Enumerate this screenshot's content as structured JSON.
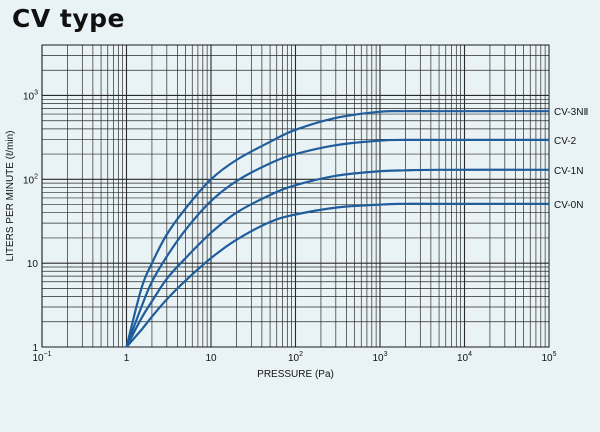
{
  "title": "CV type",
  "chart_data": {
    "type": "line",
    "title": "CV type",
    "xlabel": "PRESSURE (Pa)",
    "ylabel": "LITERS PER MINUTE (ℓ/min)",
    "xscale": "log",
    "yscale": "log",
    "xlim": [
      0.1,
      100000
    ],
    "ylim": [
      1,
      4000
    ],
    "grid": true,
    "x_ticks": [
      {
        "base": "10",
        "exp": "−1",
        "value": 0.1
      },
      {
        "base": "1",
        "exp": "",
        "value": 1
      },
      {
        "base": "10",
        "exp": "",
        "value": 10
      },
      {
        "base": "10",
        "exp": "2",
        "value": 100
      },
      {
        "base": "10",
        "exp": "3",
        "value": 1000
      },
      {
        "base": "10",
        "exp": "4",
        "value": 10000
      },
      {
        "base": "10",
        "exp": "5",
        "value": 100000
      }
    ],
    "y_ticks": [
      {
        "base": "1",
        "exp": "",
        "value": 1
      },
      {
        "base": "10",
        "exp": "",
        "value": 10
      },
      {
        "base": "10",
        "exp": "2",
        "value": 100
      },
      {
        "base": "10",
        "exp": "3",
        "value": 1000
      }
    ],
    "series": [
      {
        "name": "CV-3NⅡ",
        "color": "#1f5d9c",
        "x": [
          1,
          1.5,
          2,
          3,
          5,
          10,
          20,
          50,
          100,
          300,
          1000,
          2000,
          5000,
          100000
        ],
        "y": [
          1,
          5,
          10,
          22,
          45,
          100,
          170,
          280,
          390,
          540,
          640,
          650,
          650,
          650
        ]
      },
      {
        "name": "CV-2",
        "color": "#1f5d9c",
        "x": [
          1,
          1.5,
          2,
          3,
          5,
          10,
          20,
          50,
          100,
          300,
          1000,
          2000,
          5000,
          100000
        ],
        "y": [
          1,
          3,
          6,
          12,
          25,
          55,
          95,
          155,
          200,
          255,
          290,
          295,
          295,
          295
        ]
      },
      {
        "name": "CV-1N",
        "color": "#1f5d9c",
        "x": [
          1,
          1.5,
          2,
          3,
          5,
          10,
          20,
          50,
          100,
          300,
          1000,
          2000,
          5000,
          100000
        ],
        "y": [
          1,
          2.2,
          3.5,
          6.5,
          11.5,
          23,
          40,
          65,
          85,
          110,
          125,
          128,
          130,
          130
        ]
      },
      {
        "name": "CV-0N",
        "color": "#1f5d9c",
        "x": [
          1,
          1.5,
          2,
          3,
          5,
          10,
          20,
          50,
          100,
          300,
          1000,
          2000,
          5000,
          100000
        ],
        "y": [
          1,
          1.6,
          2.3,
          3.7,
          6.2,
          11.5,
          19,
          31,
          38,
          46,
          50,
          51,
          51,
          51
        ]
      }
    ]
  }
}
